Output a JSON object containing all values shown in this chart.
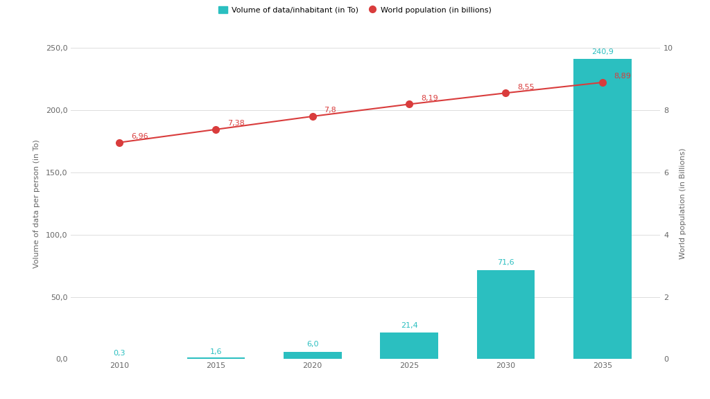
{
  "years": [
    2010,
    2015,
    2020,
    2025,
    2030,
    2035
  ],
  "bar_values": [
    0.3,
    1.6,
    6.0,
    21.4,
    71.6,
    240.9
  ],
  "pop_values": [
    6.96,
    7.38,
    7.8,
    8.19,
    8.55,
    8.89
  ],
  "bar_color": "#2bbfc0",
  "line_color": "#d93c3c",
  "bar_label_color": "#2bbfc0",
  "pop_label_color": "#d93c3c",
  "ylabel_left": "Volume of data per person (in To)",
  "ylabel_right": "World population (in Billions)",
  "ylim_left": [
    0,
    250
  ],
  "ylim_right": [
    0,
    10
  ],
  "yticks_left": [
    0.0,
    50.0,
    100.0,
    150.0,
    200.0,
    250.0
  ],
  "yticks_right": [
    0,
    2,
    4,
    6,
    8,
    10
  ],
  "legend_bar": "Volume of data/inhabitant (in To)",
  "legend_line": "World population (in billions)",
  "bg_color": "#ffffff",
  "grid_color": "#dddddd",
  "bar_width": 3.0,
  "label_fontsize": 8,
  "tick_fontsize": 8,
  "annotation_fontsize": 8,
  "legend_fontsize": 8,
  "pop_label_offsets_x": [
    0.5,
    0.5,
    0.5,
    0.5,
    0.5,
    0.5
  ],
  "pop_label_offsets_y": [
    0.05,
    0.05,
    0.05,
    0.05,
    0.05,
    0.05
  ]
}
